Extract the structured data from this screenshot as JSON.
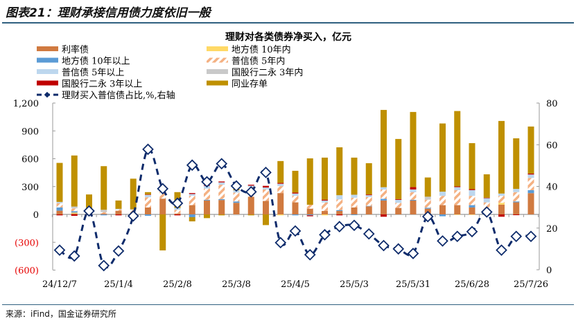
{
  "figure_title": "图表21：理财承接信用债力度依旧一般",
  "source": "来源：iFind，国金证券研究所",
  "chart_data": {
    "type": "bar",
    "title": "理财对各类债券净买入，亿元",
    "stacked": true,
    "categories": [
      "24/12/7",
      "",
      "",
      "",
      "25/1/4",
      "",
      "",
      "",
      "25/2/8",
      "",
      "",
      "",
      "25/3/8",
      "",
      "",
      "",
      "25/4/5",
      "",
      "",
      "",
      "25/5/3",
      "",
      "",
      "",
      "25/5/31",
      "",
      "",
      "",
      "25/6/28",
      "",
      "",
      "",
      "25/7/26"
    ],
    "y_left": {
      "ylim": [
        -600,
        1200
      ],
      "ticks": [
        1200,
        900,
        600,
        300,
        0,
        -300,
        -600
      ],
      "tick_labels": [
        "1,200",
        "900",
        "600",
        "300",
        "0",
        "(300)",
        "(600)"
      ],
      "negative_label_color": "#e60000"
    },
    "y_right": {
      "ylim": [
        0,
        80
      ],
      "ticks": [
        0,
        20,
        40,
        60,
        80
      ],
      "tick_labels": [
        "0",
        "20",
        "40",
        "60",
        "80"
      ]
    },
    "legend_position": "top",
    "grid": false,
    "series": [
      {
        "name": "利率债",
        "color": "#d07a40",
        "pattern": "solid",
        "values": [
          40,
          10,
          20,
          10,
          40,
          10,
          75,
          170,
          10,
          100,
          150,
          155,
          125,
          190,
          145,
          230,
          130,
          62,
          37,
          37,
          75,
          87,
          150,
          70,
          149,
          62,
          100,
          100,
          75,
          55,
          105,
          130,
          229
        ]
      },
      {
        "name": "地方债 10年内",
        "color": "#ffd966",
        "pattern": "solid",
        "values": [
          0,
          10,
          0,
          0,
          0,
          0,
          0,
          0,
          0,
          0,
          0,
          0,
          0,
          0,
          0,
          -10,
          0,
          0,
          -10,
          0,
          0,
          0,
          0,
          0,
          0,
          0,
          0,
          -5,
          -5,
          0,
          20,
          0,
          0
        ]
      },
      {
        "name": "地方债 10年以上",
        "color": "#5b9bd5",
        "pattern": "solid",
        "values": [
          35,
          15,
          5,
          -10,
          0,
          -10,
          -15,
          0,
          0,
          -30,
          8,
          10,
          15,
          0,
          0,
          0,
          -10,
          -10,
          0,
          10,
          -8,
          5,
          18,
          0,
          8,
          10,
          -20,
          0,
          25,
          0,
          0,
          10,
          32
        ]
      },
      {
        "name": "普信债 5年内",
        "color": "#f4b183",
        "pattern": "hatch",
        "values": [
          45,
          30,
          15,
          15,
          15,
          40,
          110,
          105,
          40,
          100,
          120,
          155,
          95,
          105,
          125,
          75,
          70,
          42,
          92,
          115,
          105,
          95,
          100,
          55,
          82,
          87,
          100,
          162,
          100,
          75,
          75,
          100,
          132
        ]
      },
      {
        "name": "普信债 5年以上",
        "color": "#bdd7ee",
        "pattern": "solid",
        "values": [
          10,
          5,
          0,
          0,
          5,
          0,
          25,
          25,
          20,
          20,
          30,
          25,
          25,
          15,
          20,
          25,
          25,
          0,
          20,
          45,
          32,
          20,
          25,
          32,
          30,
          0,
          45,
          32,
          62,
          45,
          25,
          35,
          37
        ]
      },
      {
        "name": "国股行二永 3年内",
        "color": "#c9c9c9",
        "pattern": "solid",
        "values": [
          5,
          15,
          30,
          25,
          0,
          5,
          0,
          0,
          0,
          0,
          0,
          0,
          -10,
          0,
          0,
          0,
          0,
          0,
          0,
          0,
          0,
          0,
          0,
          0,
          0,
          32,
          0,
          0,
          0,
          -10,
          0,
          0,
          0
        ]
      },
      {
        "name": "国股行二永 3年以上",
        "color": "#c00000",
        "pattern": "solid",
        "values": [
          -10,
          -15,
          0,
          0,
          -10,
          0,
          5,
          10,
          -10,
          10,
          8,
          10,
          0,
          10,
          18,
          10,
          10,
          -10,
          10,
          -10,
          0,
          8,
          -25,
          8,
          25,
          0,
          0,
          8,
          10,
          5,
          -25,
          -8,
          10
        ]
      },
      {
        "name": "同业存单",
        "color": "#bf9000",
        "pattern": "solid",
        "values": [
          420,
          550,
          145,
          470,
          90,
          330,
          25,
          -388,
          170,
          -45,
          -40,
          -10,
          15,
          -10,
          -115,
          235,
          235,
          500,
          453,
          516,
          400,
          337,
          833,
          648,
          810,
          207,
          735,
          812,
          496,
          252,
          782,
          545,
          507
        ]
      }
    ],
    "line_series": {
      "name": "理财买入普信债占比,%,右轴",
      "axis": "right",
      "color": "#0d2b6b",
      "values": [
        9.4,
        6.6,
        28.2,
        2,
        9,
        25.8,
        57.8,
        38.9,
        31.9,
        50.2,
        42.2,
        50.9,
        40.2,
        37.4,
        46.7,
        13,
        18.6,
        7.2,
        16.8,
        20.7,
        21.3,
        17.2,
        11.6,
        10,
        7.8,
        25.5,
        13.8,
        16,
        18.3,
        27.7,
        9.4,
        16,
        16
      ]
    }
  }
}
